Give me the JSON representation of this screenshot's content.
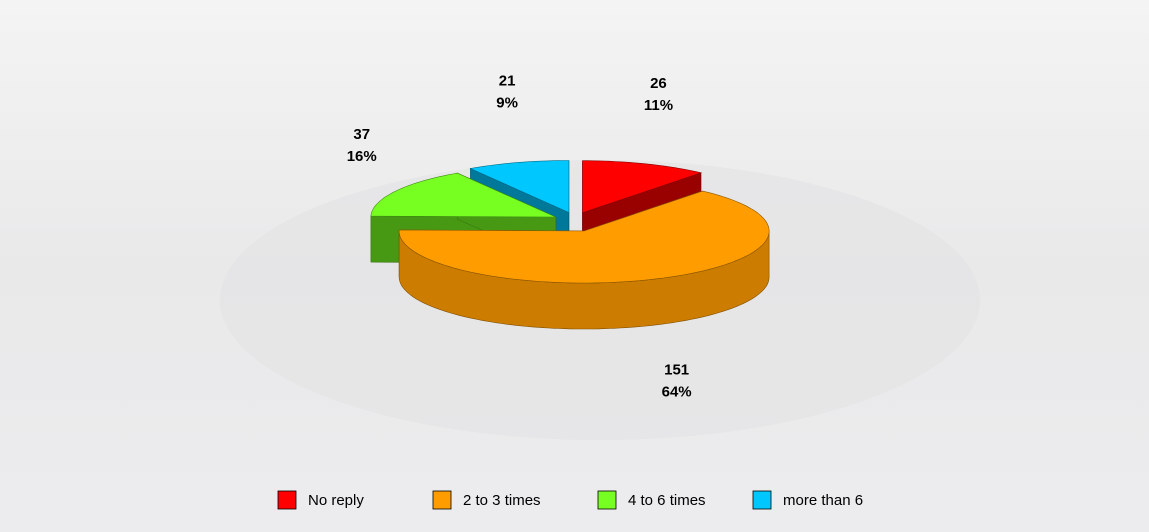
{
  "chart_data": {
    "type": "pie3d",
    "categories": [
      "No reply",
      "2 to 3 times",
      "4 to 6 times",
      "more than 6"
    ],
    "values": [
      26,
      151,
      37,
      21
    ],
    "percents": [
      11,
      64,
      16,
      9
    ],
    "percent_labels": [
      "11%",
      "64%",
      "16%",
      "9%"
    ],
    "colors": [
      "#ff0000",
      "#ff9c00",
      "#77ff22",
      "#00c8ff"
    ],
    "legend": "bottom"
  }
}
